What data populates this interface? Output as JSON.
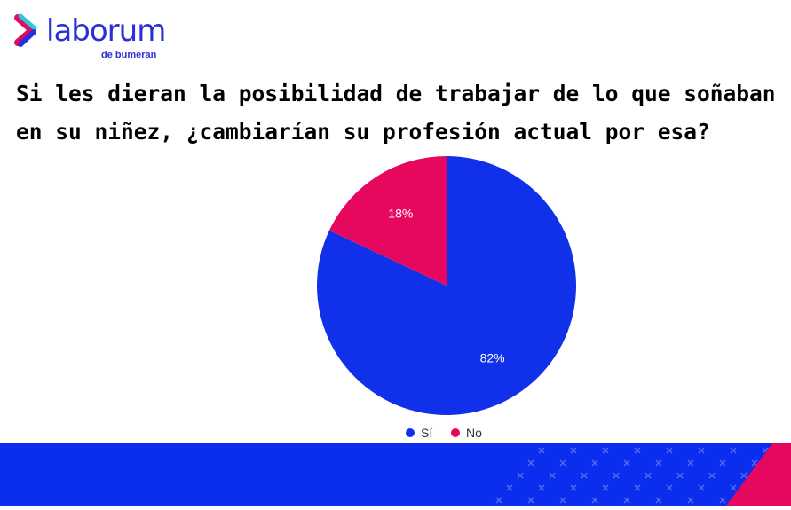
{
  "logo": {
    "word": "laborum",
    "sub": "de bumeran"
  },
  "title": "Si les dieran la posibilidad de trabajar de lo que soñaban\nen su niñez, ¿cambiarían su profesión actual por esa?",
  "chart_data": {
    "type": "pie",
    "title": "Si les dieran la posibilidad de trabajar de lo que soñaban en su niñez, ¿cambiarían su profesión actual por esa?",
    "categories": [
      "Sí",
      "No"
    ],
    "values": [
      82,
      18
    ],
    "labels": [
      "82%",
      "18%"
    ],
    "colors": [
      "#1030ea",
      "#e6085f"
    ],
    "legend": "bottom"
  },
  "colors": {
    "band": "#0b2ded",
    "accent": "#e6085f"
  }
}
